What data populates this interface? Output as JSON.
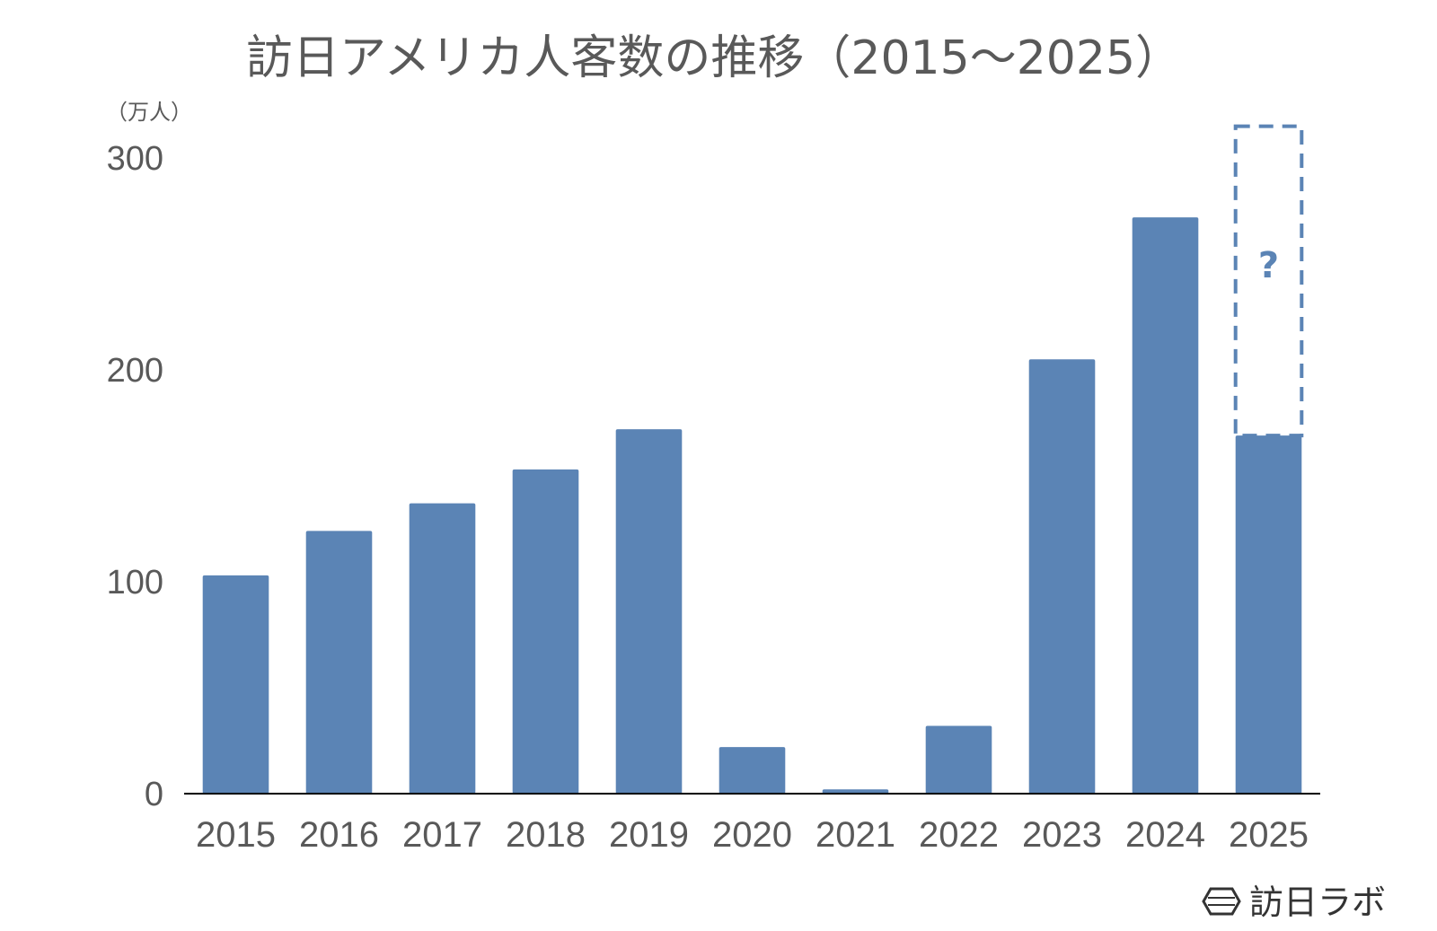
{
  "chart_data": {
    "type": "bar",
    "title": "訪日アメリカ人客数の推移（2015〜2025）",
    "ylabel": "（万人）",
    "categories": [
      "2015",
      "2016",
      "2017",
      "2018",
      "2019",
      "2020",
      "2021",
      "2022",
      "2023",
      "2024",
      "2025"
    ],
    "values": [
      103,
      124,
      137,
      153,
      172,
      22,
      2,
      32,
      205,
      272,
      169
    ],
    "ylim": [
      0,
      300
    ],
    "yticks": [
      0,
      100,
      200,
      300
    ],
    "bar_color": "#5b84b5",
    "axis_color": "#000000",
    "grid": false,
    "forecast": {
      "category": "2025",
      "upper_value": 315,
      "marker": "?"
    }
  },
  "brand": {
    "name": "訪日ラボ",
    "icon": "hexagon-logo-icon"
  }
}
